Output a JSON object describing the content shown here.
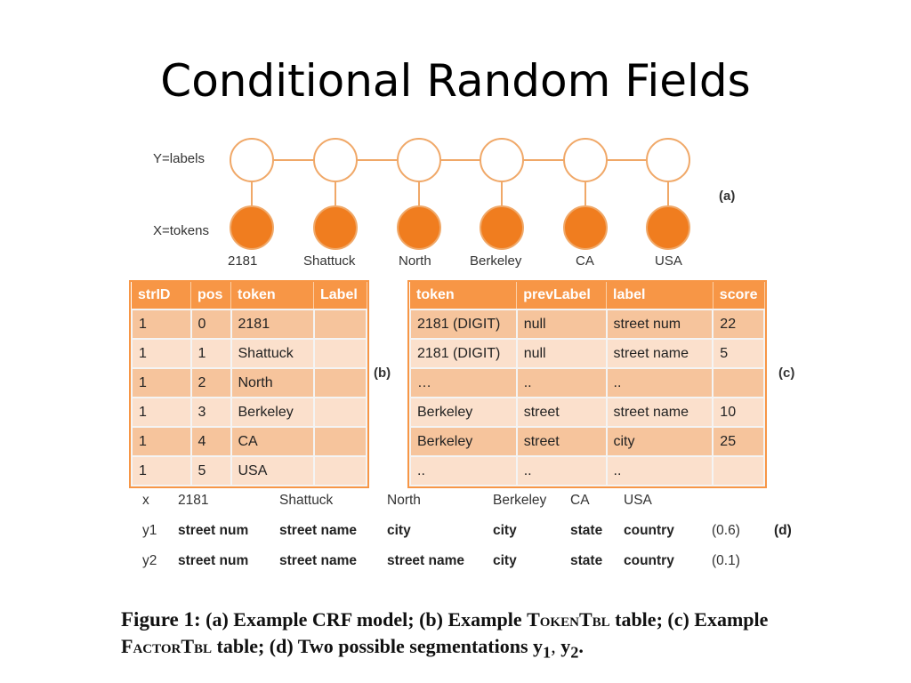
{
  "slide": {
    "title": "Conditional Random Fields"
  },
  "diagram": {
    "y_label": "Y=labels",
    "x_label": "X=tokens",
    "tokens": [
      "2181",
      "Shattuck",
      "North",
      "Berkeley",
      "CA",
      "USA"
    ],
    "panel_a": "(a)",
    "colors": {
      "observed": "#f07d1f",
      "edge": "#f0a868",
      "hidden_stroke": "#f0a868"
    }
  },
  "token_table": {
    "panel": "(b)",
    "headers": [
      "strID",
      "pos",
      "token",
      "Label"
    ],
    "rows": [
      [
        "1",
        "0",
        "2181",
        ""
      ],
      [
        "1",
        "1",
        "Shattuck",
        ""
      ],
      [
        "1",
        "2",
        "North",
        ""
      ],
      [
        "1",
        "3",
        "Berkeley",
        ""
      ],
      [
        "1",
        "4",
        "CA",
        ""
      ],
      [
        "1",
        "5",
        "USA",
        ""
      ]
    ]
  },
  "factor_table": {
    "panel": "(c)",
    "headers": [
      "token",
      "prevLabel",
      "label",
      "score"
    ],
    "rows": [
      [
        "2181 (DIGIT)",
        "null",
        "street num",
        "22"
      ],
      [
        "2181 (DIGIT)",
        "null",
        "street name",
        "5"
      ],
      [
        "…",
        "..",
        "..",
        ""
      ],
      [
        "Berkeley",
        "street",
        "street name",
        "10"
      ],
      [
        "Berkeley",
        "street",
        "city",
        "25"
      ],
      [
        "..",
        "..",
        "..",
        ""
      ]
    ]
  },
  "segmentations": {
    "panel": "(d)",
    "x": {
      "name": "x",
      "values": [
        "2181",
        "Shattuck",
        "North",
        "Berkeley",
        "CA",
        "USA"
      ]
    },
    "y1": {
      "name": "y1",
      "values": [
        "street num",
        "street name",
        "city",
        "city",
        "state",
        "country"
      ],
      "prob": "(0.6)"
    },
    "y2": {
      "name": "y2",
      "values": [
        "street num",
        "street name",
        "street name",
        "city",
        "state",
        "country"
      ],
      "prob": "(0.1)"
    }
  },
  "caption": {
    "figure": "Figure 1:",
    "part1": "(a) Example CRF model; (b) Example",
    "tokentbl": "TokenTbl",
    "part2": "table; (c) Example",
    "factortbl": "FactorTbl",
    "part3": "table; (d) Two possible segmentations",
    "y1": "y",
    "y1_sub": "1",
    "sep": ", ",
    "y2": "y",
    "y2_sub": "2",
    "end": "."
  }
}
